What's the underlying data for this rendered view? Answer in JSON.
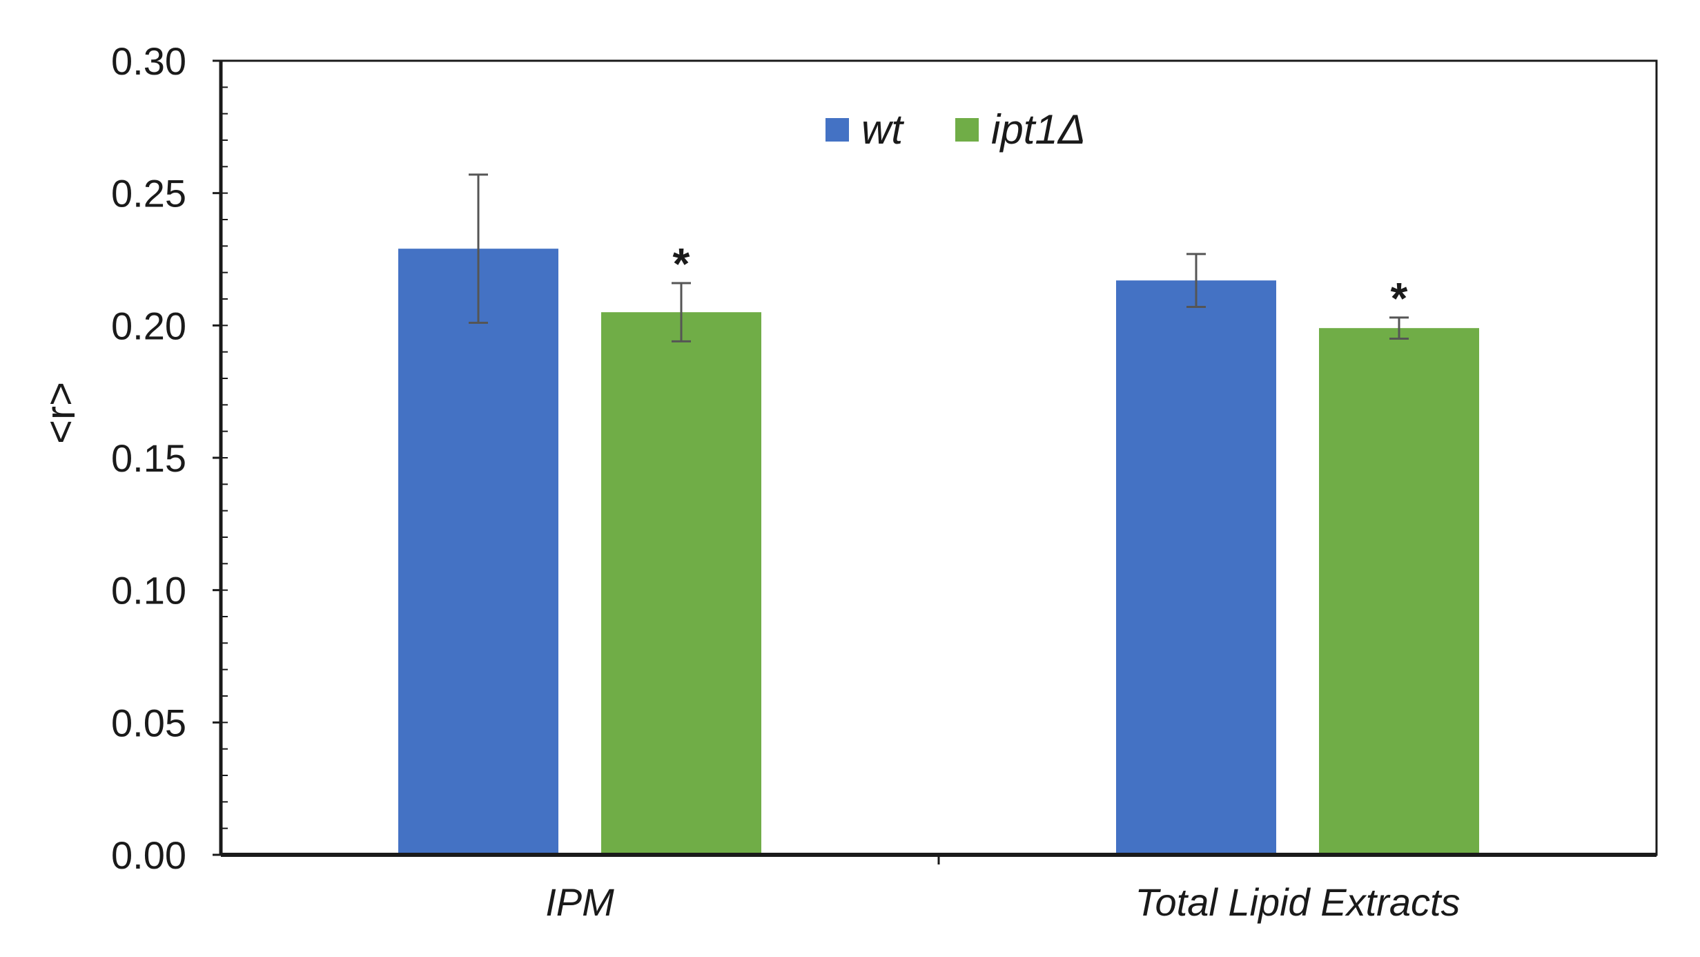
{
  "chart_data": {
    "type": "bar",
    "title": "",
    "xlabel": "",
    "ylabel": "<r>",
    "ylim": [
      0,
      0.3
    ],
    "yticks": [
      "0.00",
      "0.05",
      "0.10",
      "0.15",
      "0.20",
      "0.25",
      "0.30"
    ],
    "categories": [
      "IPM",
      "Total Lipid Extracts"
    ],
    "legend_position": "top-center",
    "series": [
      {
        "name": "wt",
        "color": "#4472C4",
        "values": [
          0.229,
          0.217
        ],
        "errors": [
          0.028,
          0.01
        ],
        "annotations": [
          "",
          ""
        ]
      },
      {
        "name": "ipt1Δ",
        "color": "#70AD47",
        "values": [
          0.205,
          0.199
        ],
        "errors": [
          0.011,
          0.004
        ],
        "annotations": [
          "*",
          "*"
        ]
      }
    ]
  }
}
